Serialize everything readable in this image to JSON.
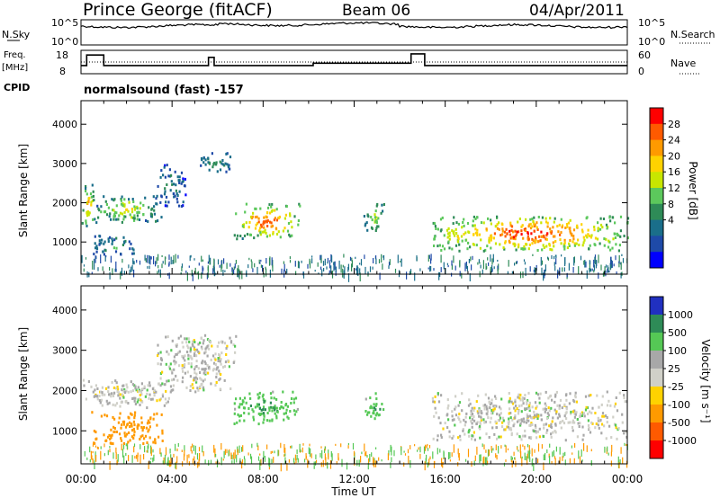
{
  "header": {
    "title": "Prince George (fitACF)",
    "beam": "Beam 06",
    "date": "04/Apr/2011"
  },
  "noise_panel": {
    "left_label": "N.Sky",
    "right_label": "N.Search",
    "ticks_left": [
      "10^5",
      "10^0"
    ],
    "ticks_right": [
      "10^5",
      "10^0"
    ]
  },
  "freq_panel": {
    "left_label_1": "Freq.",
    "left_label_2": "[MHz]",
    "right_label": "Nave",
    "ticks_left": [
      "18",
      "8"
    ],
    "ticks_right": [
      "60",
      "0"
    ],
    "cpid_label": "CPID",
    "cpid_text": "normalsound (fast) -157",
    "freq_steps": [
      [
        0.0,
        8.0,
        11.5
      ],
      [
        0.25,
        8.0,
        16.0
      ],
      [
        1.0,
        8.0,
        11.5
      ],
      [
        5.6,
        8.0,
        15.0
      ],
      [
        5.85,
        8.0,
        11.5
      ],
      [
        10.2,
        8.0,
        12.5
      ],
      [
        14.3,
        8.0,
        12.5
      ],
      [
        14.5,
        8.0,
        16.5
      ],
      [
        15.1,
        8.0,
        11.5
      ],
      [
        24.0,
        8.0,
        11.5
      ]
    ]
  },
  "colorbars": {
    "power": {
      "label": "Power [dB]",
      "ticks": [
        "28",
        "24",
        "20",
        "16",
        "12",
        "8",
        "4"
      ],
      "colors": [
        "#ff0000",
        "#ff5a00",
        "#ff9a00",
        "#ffd200",
        "#c8e600",
        "#5cc85c",
        "#2e8b57",
        "#1a6e8a",
        "#1e4aa8",
        "#0000ff"
      ]
    },
    "velocity": {
      "label": "Velocity [m s⁻¹]",
      "ticks": [
        "1000",
        "500",
        "100",
        "25",
        "-25",
        "-100",
        "-500",
        "-1000"
      ],
      "colors": [
        "#2030c0",
        "#2e8b57",
        "#55c855",
        "#a8a8a8",
        "#d0d0c8",
        "#ffd200",
        "#ff9a00",
        "#ff5a00",
        "#ff0000"
      ]
    }
  },
  "axes": {
    "ylabel": "Slant Range [km]",
    "xlabel": "Time UT",
    "yticks": [
      "4000",
      "3000",
      "2000",
      "1000"
    ],
    "xticks": [
      "00:00",
      "04:00",
      "08:00",
      "12:00",
      "16:00",
      "20:00",
      "00:00"
    ]
  },
  "chart_data": {
    "type": "heatmap",
    "title": "Prince George (fitACF)",
    "xlabel": "Time UT",
    "ylabel": "Slant Range [km]",
    "xlim": [
      0,
      24
    ],
    "ylim": [
      180,
      4600
    ],
    "x_ticks": [
      "00:00",
      "04:00",
      "08:00",
      "12:00",
      "16:00",
      "20:00",
      "00:00"
    ],
    "y_ticks": [
      1000,
      2000,
      3000,
      4000
    ],
    "power_regions": [
      {
        "t0": 0.0,
        "t1": 0.6,
        "r0": 1400,
        "r1": 2500,
        "level": 20
      },
      {
        "t0": 0.6,
        "t1": 3.5,
        "r0": 1500,
        "r1": 2200,
        "level": 16
      },
      {
        "t0": 0.4,
        "t1": 2.5,
        "r0": 700,
        "r1": 1200,
        "level": 10
      },
      {
        "t0": 3.3,
        "t1": 4.6,
        "r0": 1900,
        "r1": 3000,
        "level": 8
      },
      {
        "t0": 5.1,
        "t1": 6.6,
        "r0": 2800,
        "r1": 3300,
        "level": 9
      },
      {
        "t0": 6.7,
        "t1": 9.6,
        "r0": 1100,
        "r1": 2000,
        "level": 24
      },
      {
        "t0": 12.4,
        "t1": 13.3,
        "r0": 1300,
        "r1": 2000,
        "level": 14
      },
      {
        "t0": 15.4,
        "t1": 24.0,
        "r0": 800,
        "r1": 1700,
        "level": 26
      }
    ],
    "velocity_regions": [
      {
        "t0": 0.0,
        "t1": 4.0,
        "r0": 1600,
        "r1": 2300,
        "level": 0
      },
      {
        "t0": 0.4,
        "t1": 3.6,
        "r0": 700,
        "r1": 1500,
        "level": -300
      },
      {
        "t0": 3.3,
        "t1": 6.8,
        "r0": 2000,
        "r1": 3400,
        "level": 0
      },
      {
        "t0": 6.7,
        "t1": 9.5,
        "r0": 1200,
        "r1": 2000,
        "level": 100
      },
      {
        "t0": 12.4,
        "t1": 13.3,
        "r0": 1300,
        "r1": 2000,
        "level": 100
      },
      {
        "t0": 15.4,
        "t1": 24.0,
        "r0": 800,
        "r1": 2000,
        "level": 0
      }
    ]
  }
}
